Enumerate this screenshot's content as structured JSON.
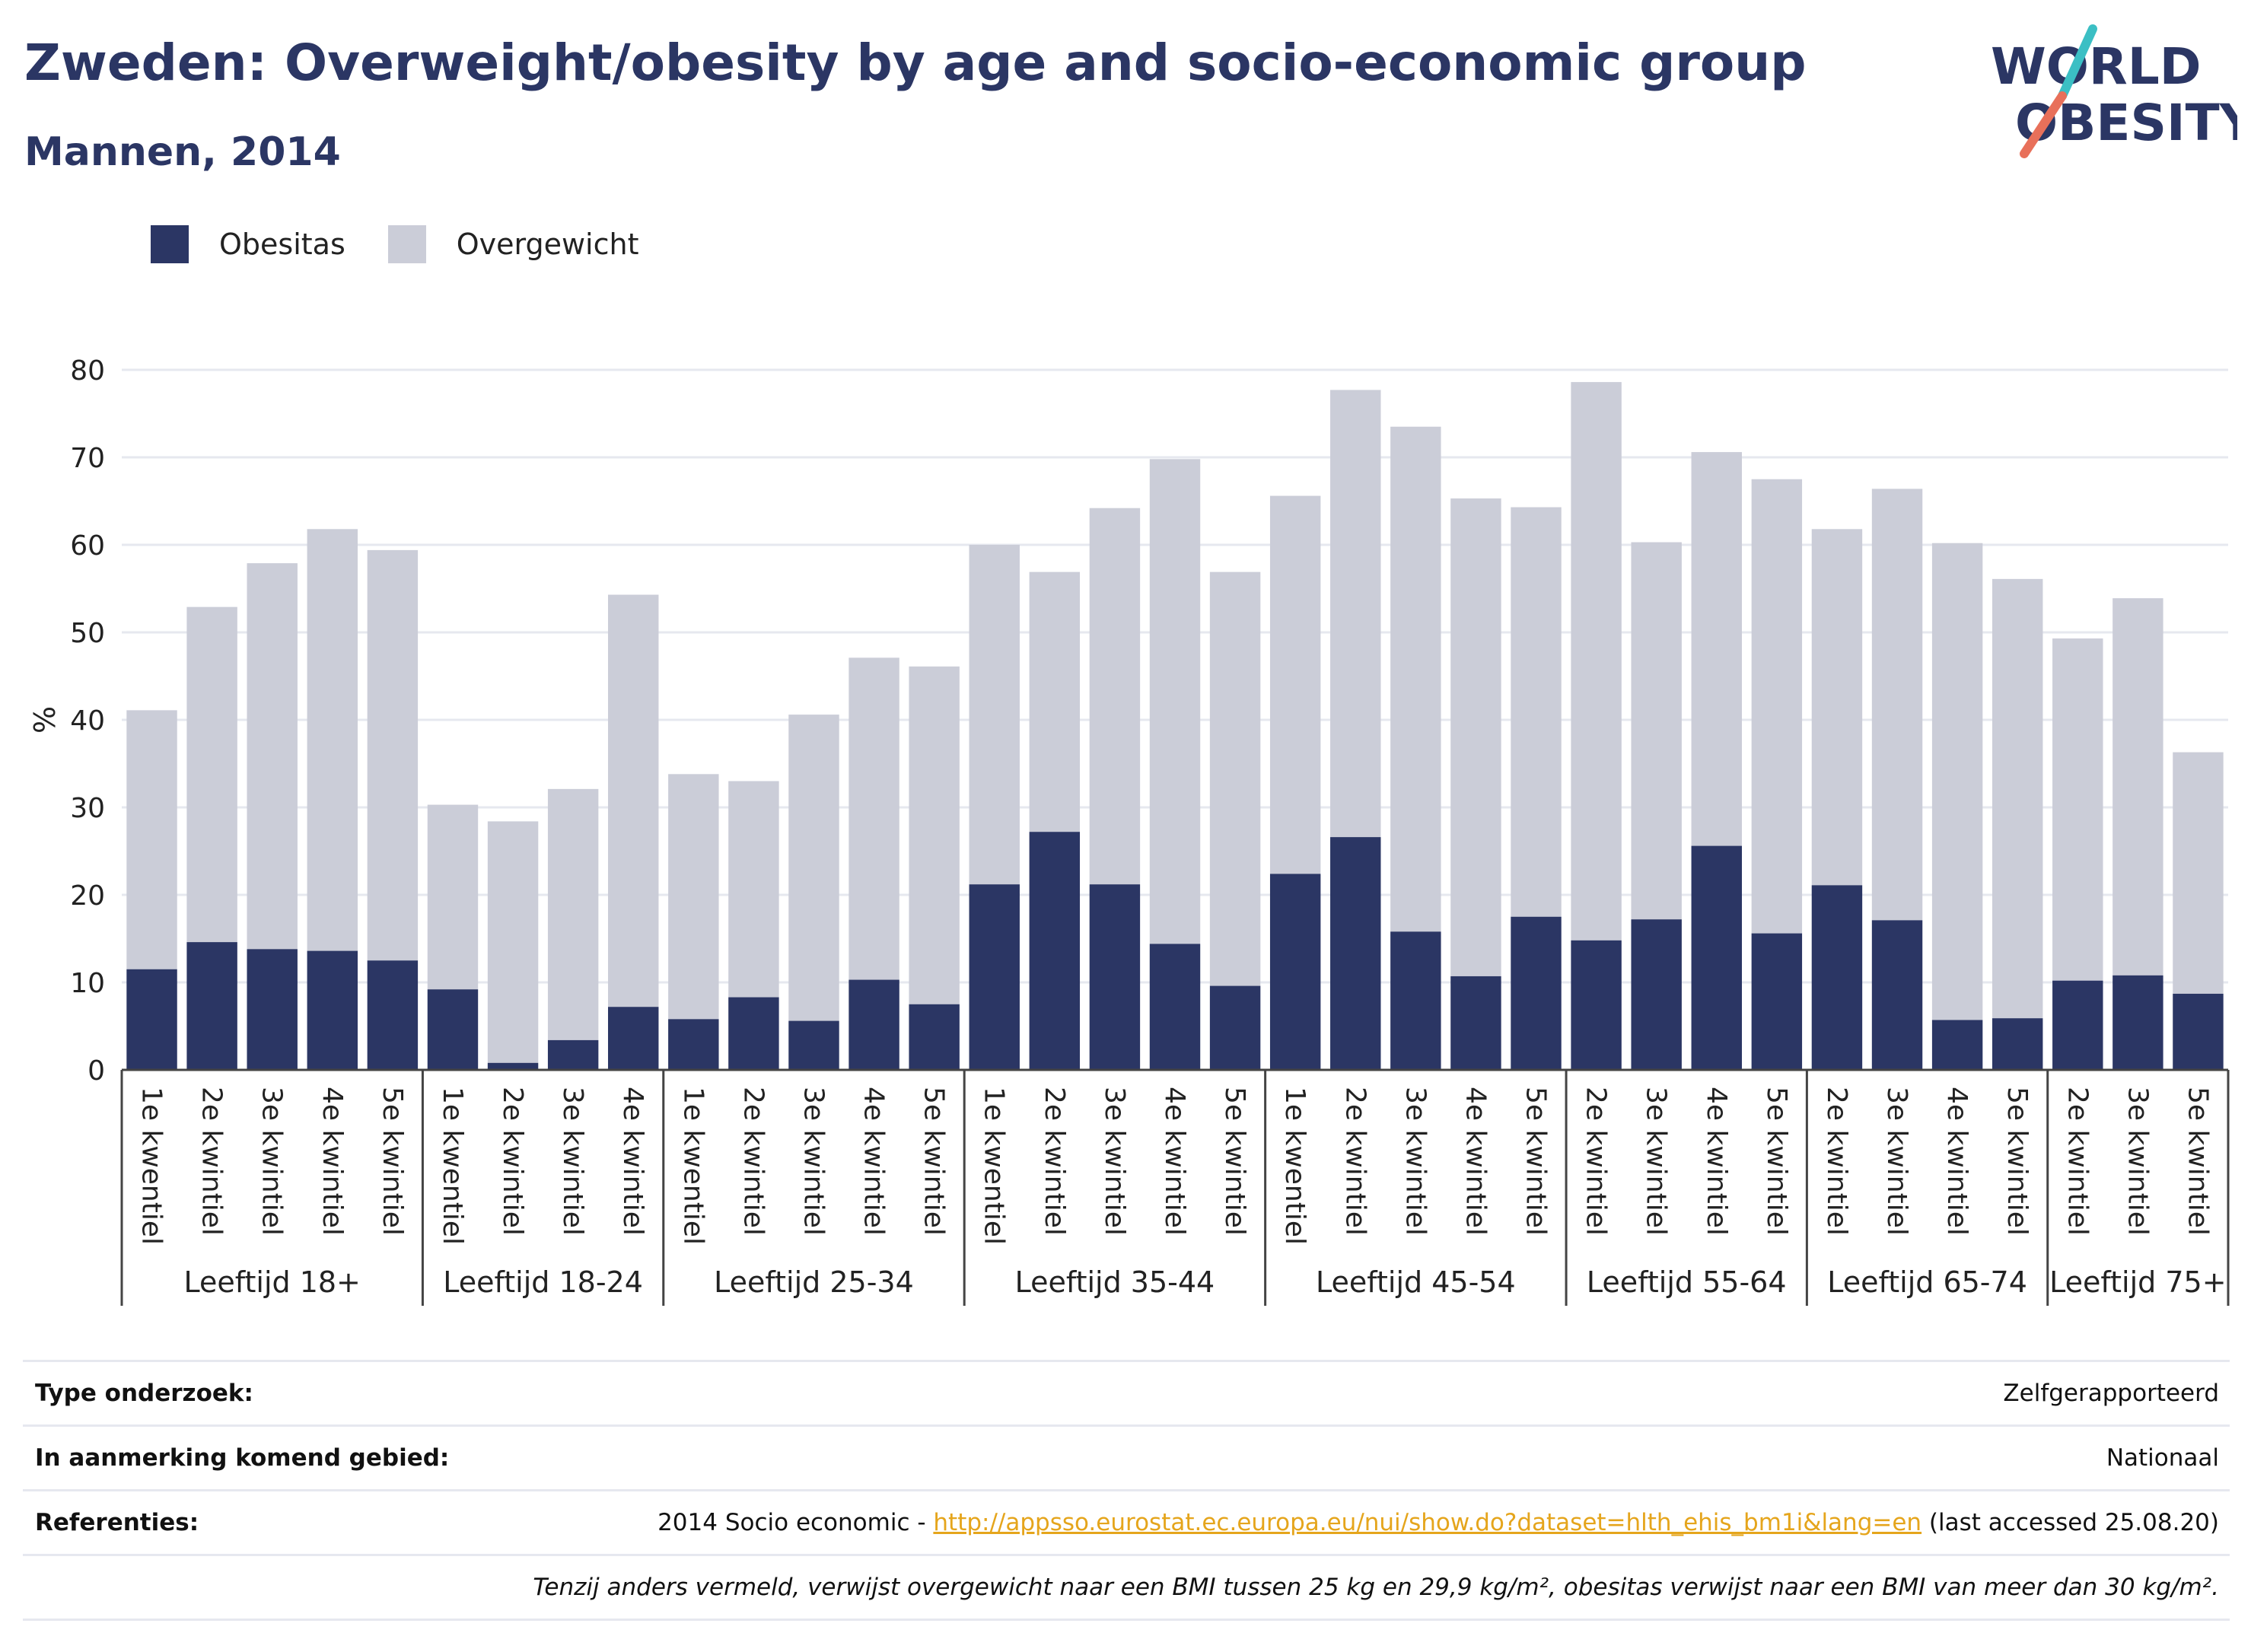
{
  "title": "Zweden: Overweight/obesity by age and socio-economic group",
  "subtitle": "Mannen, 2014",
  "logo": {
    "line1": "WORLD",
    "line2": "OBESITY"
  },
  "colors": {
    "obesitas": "#2b3664",
    "overgewicht": "#cbcdd8",
    "accent_teal": "#3bbfc4",
    "accent_coral": "#e8705a",
    "link": "#e5a51c"
  },
  "legend": [
    {
      "label": "Obesitas",
      "color": "#2b3664"
    },
    {
      "label": "Overgewicht",
      "color": "#cbcdd8"
    }
  ],
  "chart_data": {
    "type": "bar",
    "stacked": true,
    "ylabel": "%",
    "ylim": [
      0,
      80
    ],
    "yticks": [
      0,
      10,
      20,
      30,
      40,
      50,
      60,
      70,
      80
    ],
    "grid": true,
    "legend_position": "top-left",
    "groups": [
      {
        "label": "Leeftijd 18+",
        "categories": [
          "1e kwentiel",
          "2e kwintiel",
          "3e kwintiel",
          "4e kwintiel",
          "5e kwintiel"
        ],
        "obesitas": [
          11.5,
          14.6,
          13.8,
          13.6,
          12.5
        ],
        "total": [
          41.1,
          52.9,
          57.9,
          61.8,
          59.4
        ]
      },
      {
        "label": "Leeftijd 18-24",
        "categories": [
          "1e kwentiel",
          "2e kwintiel",
          "3e kwintiel",
          "4e kwintiel"
        ],
        "obesitas": [
          9.2,
          0.8,
          3.4,
          7.2
        ],
        "total": [
          30.3,
          28.4,
          32.1,
          54.3
        ]
      },
      {
        "label": "Leeftijd 25-34",
        "categories": [
          "1e kwentiel",
          "2e kwintiel",
          "3e kwintiel",
          "4e kwintiel",
          "5e kwintiel"
        ],
        "obesitas": [
          5.8,
          8.3,
          5.6,
          10.3,
          7.5
        ],
        "total": [
          33.8,
          33.0,
          40.6,
          47.1,
          46.1
        ]
      },
      {
        "label": "Leeftijd 35-44",
        "categories": [
          "1e kwentiel",
          "2e kwintiel",
          "3e kwintiel",
          "4e kwintiel",
          "5e kwintiel"
        ],
        "obesitas": [
          21.2,
          27.2,
          21.2,
          14.4,
          9.6
        ],
        "total": [
          60.0,
          56.9,
          64.2,
          69.8,
          56.9
        ]
      },
      {
        "label": "Leeftijd 45-54",
        "categories": [
          "1e kwentiel",
          "2e kwintiel",
          "3e kwintiel",
          "4e kwintiel",
          "5e kwintiel"
        ],
        "obesitas": [
          22.4,
          26.6,
          15.8,
          10.7,
          17.5
        ],
        "total": [
          65.6,
          77.7,
          73.5,
          65.3,
          64.3
        ]
      },
      {
        "label": "Leeftijd 55-64",
        "categories": [
          "2e kwintiel",
          "3e kwintiel",
          "4e kwintiel",
          "5e kwintiel"
        ],
        "obesitas": [
          14.8,
          17.2,
          25.6,
          15.6
        ],
        "total": [
          78.6,
          60.3,
          70.6,
          67.5
        ]
      },
      {
        "label": "Leeftijd 65-74",
        "categories": [
          "2e kwintiel",
          "3e kwintiel",
          "4e kwintiel",
          "5e kwintiel"
        ],
        "obesitas": [
          21.1,
          17.1,
          5.7,
          5.9
        ],
        "total": [
          61.8,
          66.4,
          60.2,
          56.1
        ]
      },
      {
        "label": "Leeftijd 75+",
        "categories": [
          "2e kwintiel",
          "3e kwintiel",
          "5e kwintiel"
        ],
        "obesitas": [
          10.2,
          10.8,
          8.7
        ],
        "total": [
          49.3,
          53.9,
          36.3
        ]
      }
    ]
  },
  "info": {
    "type_label": "Type onderzoek:",
    "type_value": "Zelfgerapporteerd",
    "area_label": "In aanmerking komend gebied:",
    "area_value": "Nationaal",
    "ref_label": "Referenties:",
    "ref_prefix": "2014 Socio economic - ",
    "ref_link": "http://appsso.eurostat.ec.europa.eu/nui/show.do?dataset=hlth_ehis_bm1i&lang=en",
    "ref_suffix": " (last accessed 25.08.20)",
    "note": "Tenzij anders vermeld, verwijst overgewicht naar een BMI tussen 25 kg en 29,9 kg/m², obesitas verwijst naar een BMI van meer dan 30 kg/m²."
  }
}
